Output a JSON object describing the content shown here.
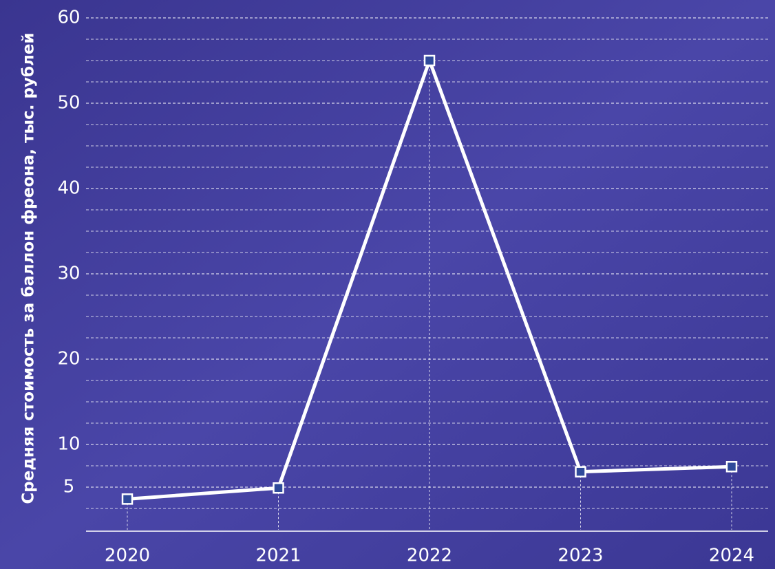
{
  "chart_data": {
    "type": "line",
    "y_label": "Средняя стоимость за баллон фреона, тыс. рублей",
    "categories": [
      "2020",
      "2021",
      "2022",
      "2023",
      "2024"
    ],
    "series": [
      {
        "name": "Средняя стоимость",
        "color": "#ffffff",
        "values": [
          3.6,
          4.9,
          55,
          6.8,
          7.4
        ]
      }
    ],
    "ylim": [
      0,
      60
    ],
    "yticks": [
      5,
      10,
      20,
      30,
      40,
      50,
      60
    ],
    "grid": true,
    "ygrid_step": 2.5
  }
}
